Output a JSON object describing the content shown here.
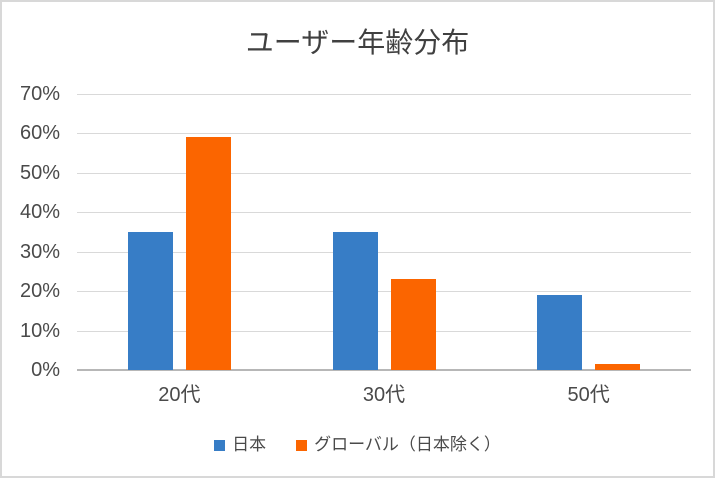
{
  "window": {
    "background_color": "#FFFFFF",
    "frame_border_color": "#D8D8D8"
  },
  "chart_data": {
    "type": "bar",
    "title": "ユーザー年齢分布",
    "categories": [
      "20代",
      "30代",
      "50代"
    ],
    "series": [
      {
        "name": "日本",
        "color": "#377DC6",
        "values": [
          35,
          35,
          19
        ]
      },
      {
        "name": "グローバル（日本除く）",
        "color": "#FB6500",
        "values": [
          59,
          23,
          1.5
        ]
      }
    ],
    "xlabel": "",
    "ylabel": "",
    "ylim": [
      0,
      70
    ],
    "ytick_step": 10,
    "yticks": [
      "0%",
      "10%",
      "20%",
      "30%",
      "40%",
      "50%",
      "60%",
      "70%"
    ],
    "grid": "horizontal",
    "grid_color": "#D9D9D9",
    "axis_line_color": "#B7B7B7",
    "text_color": "#404040",
    "legend_position": "bottom"
  }
}
